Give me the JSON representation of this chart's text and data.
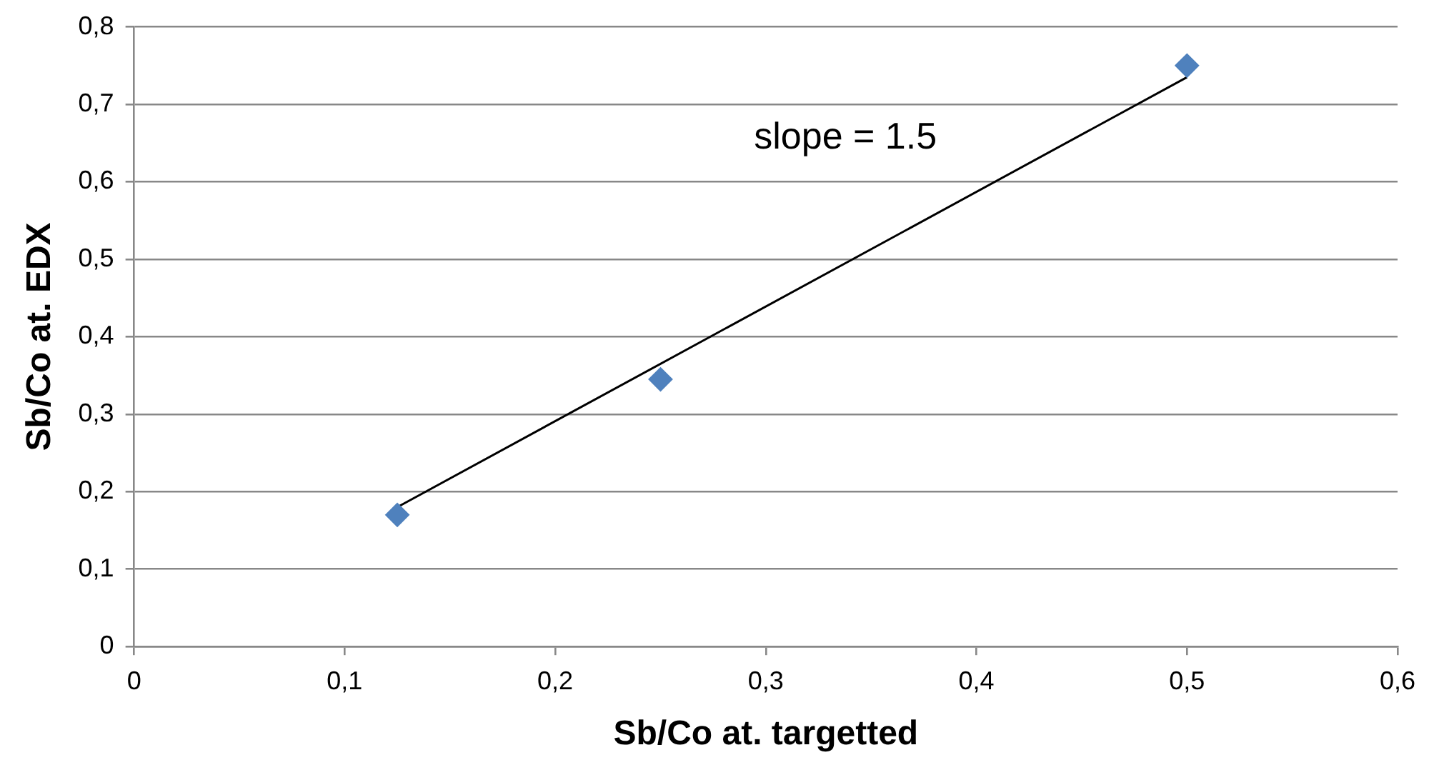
{
  "chart_data": {
    "type": "scatter",
    "xlabel": "Sb/Co at. targetted",
    "ylabel": "Sb/Co at. EDX",
    "series": [
      {
        "color": "#4f81bd",
        "marker": "diamond",
        "x": [
          0.125,
          0.25,
          0.5
        ],
        "values": [
          0.17,
          0.345,
          0.75
        ]
      },
      {
        "type": "line",
        "color": "#000000",
        "marker": "none",
        "line_style": "solid",
        "x": [
          0.125,
          0.5
        ],
        "values": [
          0.18,
          0.735
        ]
      }
    ],
    "xlim": [
      0,
      0.6
    ],
    "xticks": [
      0,
      {
        "value": 0.1,
        "label": "0,1"
      },
      {
        "value": 0.2,
        "label": "0,2"
      },
      {
        "value": 0.3,
        "label": "0,3"
      },
      {
        "value": 0.4,
        "label": "0,4"
      },
      {
        "value": 0.5,
        "label": "0,5"
      },
      {
        "value": 0.6,
        "label": "0,6"
      }
    ],
    "ylim": [
      0,
      0.8
    ],
    "yticks": [
      0,
      {
        "value": 0.1,
        "label": "0,1"
      },
      {
        "value": 0.2,
        "label": "0,2"
      },
      {
        "value": 0.3,
        "label": "0,3"
      },
      {
        "value": 0.4,
        "label": "0,4"
      },
      {
        "value": 0.5,
        "label": "0,5"
      },
      {
        "value": 0.6,
        "label": "0,6"
      },
      {
        "value": 0.7,
        "label": "0,7"
      },
      {
        "value": 0.8,
        "label": "0,8"
      }
    ],
    "grid": "y",
    "legend": false,
    "annotations": [
      "slope = 1.5"
    ]
  }
}
